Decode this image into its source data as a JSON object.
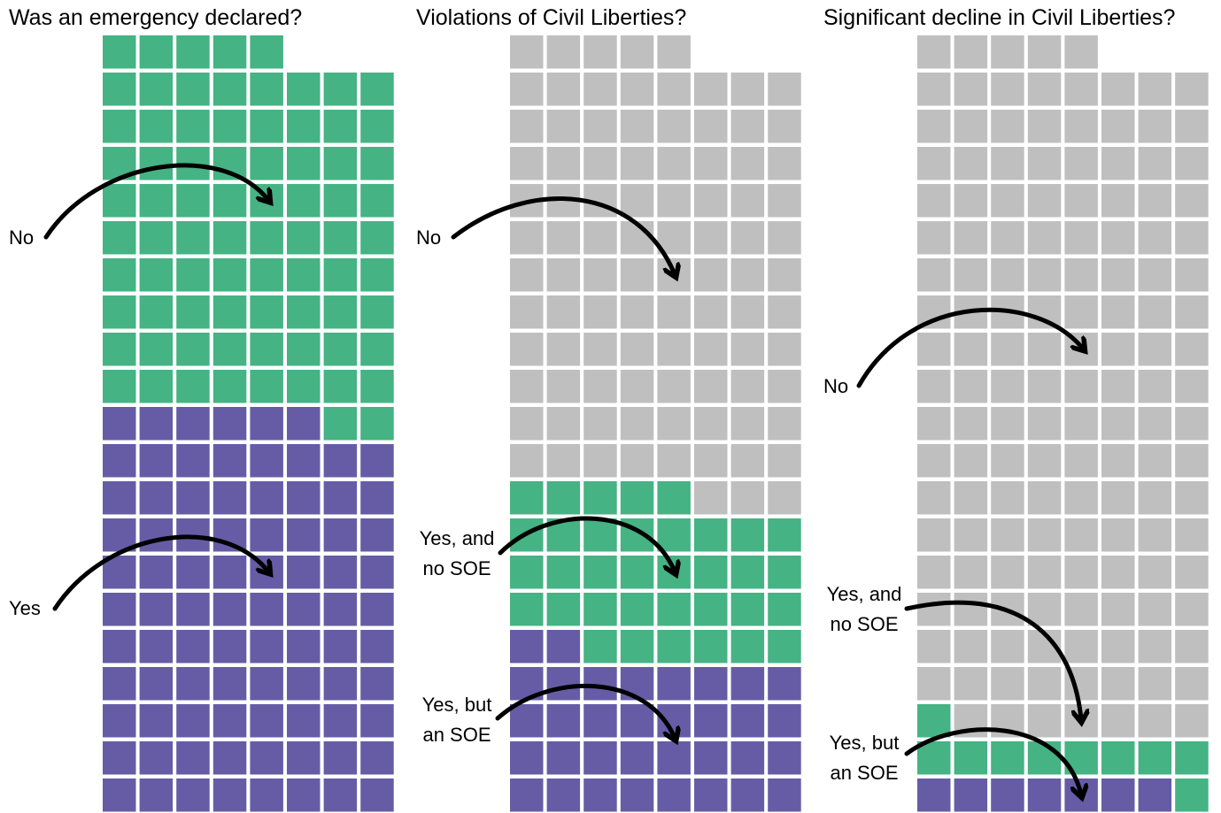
{
  "colors": {
    "green": "#45b384",
    "purple": "#665ca6",
    "gray": "#bfbfbf"
  },
  "chart_data": [
    {
      "type": "waffle",
      "title": "Was an emergency declared?",
      "columns": 8,
      "total": 165,
      "fill_order": "bottom-left, row by row",
      "segments": [
        {
          "name": "Yes",
          "value": 86,
          "color": "purple"
        },
        {
          "name": "No",
          "value": 79,
          "color": "green"
        }
      ],
      "annotations": [
        {
          "text": "No"
        },
        {
          "text": "Yes"
        }
      ]
    },
    {
      "type": "waffle",
      "title": "Violations of Civil Liberties?",
      "columns": 8,
      "total": 165,
      "fill_order": "bottom-left, row by row",
      "segments": [
        {
          "name": "Yes, but an SOE",
          "value": 34,
          "color": "purple"
        },
        {
          "name": "Yes, and no SOE",
          "value": 35,
          "color": "green"
        },
        {
          "name": "No",
          "value": 96,
          "color": "gray"
        }
      ],
      "annotations": [
        {
          "text": "No"
        },
        {
          "text": "Yes, and",
          "text2": "no SOE"
        },
        {
          "text": "Yes, but",
          "text2": "an SOE"
        }
      ]
    },
    {
      "type": "waffle",
      "title": "Significant decline in Civil Liberties?",
      "columns": 8,
      "total": 165,
      "fill_order": "bottom-left, row by row",
      "segments": [
        {
          "name": "Yes, but an SOE",
          "value": 7,
          "color": "purple"
        },
        {
          "name": "Yes, and no SOE",
          "value": 10,
          "color": "green"
        },
        {
          "name": "No",
          "value": 148,
          "color": "gray"
        }
      ],
      "annotations": [
        {
          "text": "No"
        },
        {
          "text": "Yes, and",
          "text2": "no SOE"
        },
        {
          "text": "Yes, but",
          "text2": "an SOE"
        }
      ]
    }
  ]
}
